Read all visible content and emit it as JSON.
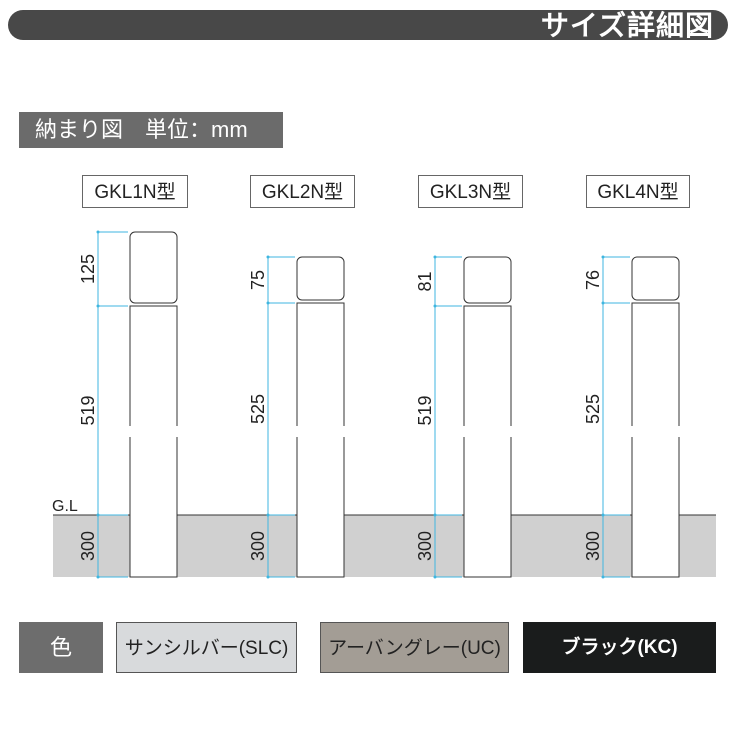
{
  "header": {
    "title": "サイズ詳細図"
  },
  "section": {
    "label": "納まり図　単位：mm"
  },
  "ground_label": "G.L",
  "models": [
    {
      "name": "GKL1N型",
      "cap": "125",
      "body": "519",
      "buried": "300"
    },
    {
      "name": "GKL2N型",
      "cap": "75",
      "body": "525",
      "buried": "300"
    },
    {
      "name": "GKL3N型",
      "cap": "81",
      "body": "519",
      "buried": "300"
    },
    {
      "name": "GKL4N型",
      "cap": "76",
      "body": "525",
      "buried": "300"
    }
  ],
  "colors": {
    "label": "色",
    "items": [
      {
        "name": "サンシルバー(SLC)",
        "hex": "#d8dadc"
      },
      {
        "name": "アーバングレー(UC)",
        "hex": "#a39d95"
      },
      {
        "name": "ブラック(KC)",
        "hex": "#1a1c1c"
      }
    ]
  },
  "dimension_color": "#3fb6e0"
}
